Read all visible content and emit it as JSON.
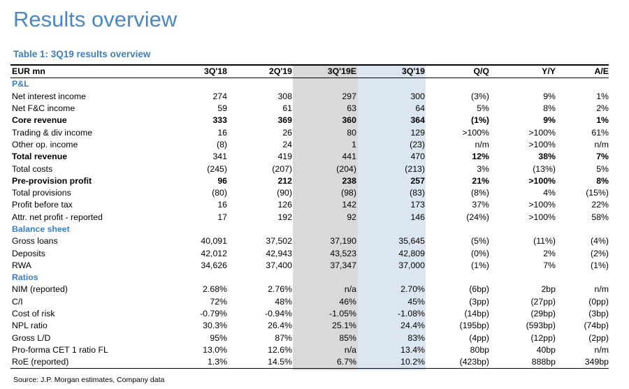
{
  "title": "Results overview",
  "subtitle": "Table 1: 3Q19 results overview",
  "source": "Source: J.P. Morgan estimates, Company data",
  "columns": [
    "EUR mn",
    "3Q'18",
    "2Q'19",
    "3Q'19E",
    "3Q'19",
    "Q/Q",
    "Y/Y",
    "A/E"
  ],
  "rows": [
    {
      "type": "section",
      "label": "P&L"
    },
    {
      "type": "data",
      "label": "Net interest income",
      "values": [
        "274",
        "308",
        "297",
        "300",
        "(3%)",
        "9%",
        "1%"
      ]
    },
    {
      "type": "data",
      "label": "Net F&C income",
      "values": [
        "59",
        "61",
        "63",
        "64",
        "5%",
        "8%",
        "2%"
      ]
    },
    {
      "type": "bold",
      "label": "Core revenue",
      "values": [
        "333",
        "369",
        "360",
        "364",
        "(1%)",
        "9%",
        "1%"
      ]
    },
    {
      "type": "data",
      "label": "Trading & div income",
      "values": [
        "16",
        "26",
        "80",
        "129",
        ">100%",
        ">100%",
        "61%"
      ]
    },
    {
      "type": "data",
      "label": "Other op. income",
      "values": [
        "(8)",
        "24",
        "1",
        "(23)",
        "n/m",
        ">100%",
        "n/m"
      ]
    },
    {
      "type": "bold",
      "label": "Total revenue",
      "values": [
        "341",
        "419",
        "441",
        "470",
        "12%",
        "38%",
        "7%"
      ],
      "boldValues": [
        false,
        false,
        false,
        false,
        true,
        true,
        true
      ]
    },
    {
      "type": "data",
      "label": "Total costs",
      "values": [
        "(245)",
        "(207)",
        "(204)",
        "(213)",
        "3%",
        "(13%)",
        "5%"
      ]
    },
    {
      "type": "bold",
      "label": "Pre-provision profit",
      "values": [
        "96",
        "212",
        "238",
        "257",
        "21%",
        ">100%",
        "8%"
      ]
    },
    {
      "type": "data",
      "label": "Total provisions",
      "values": [
        "(80)",
        "(90)",
        "(98)",
        "(83)",
        "(8%)",
        "4%",
        "(15%)"
      ]
    },
    {
      "type": "data",
      "label": "Profit before tax",
      "values": [
        "16",
        "126",
        "142",
        "173",
        "37%",
        ">100%",
        "22%"
      ]
    },
    {
      "type": "data",
      "label": "Attr. net profit - reported",
      "values": [
        "17",
        "192",
        "92",
        "146",
        "(24%)",
        ">100%",
        "58%"
      ]
    },
    {
      "type": "section",
      "label": "Balance sheet"
    },
    {
      "type": "data",
      "label": "Gross loans",
      "values": [
        "40,091",
        "37,502",
        "37,190",
        "35,645",
        "(5%)",
        "(11%)",
        "(4%)"
      ]
    },
    {
      "type": "data",
      "label": "Deposits",
      "values": [
        "42,012",
        "42,943",
        "43,523",
        "42,809",
        "(0%)",
        "2%",
        "(2%)"
      ]
    },
    {
      "type": "data",
      "label": "RWA",
      "values": [
        "34,626",
        "37,400",
        "37,347",
        "37,000",
        "(1%)",
        "7%",
        "(1%)"
      ]
    },
    {
      "type": "section",
      "label": "Ratios"
    },
    {
      "type": "data",
      "label": "NIM (reported)",
      "values": [
        "2.68%",
        "2.76%",
        "n/a",
        "2.70%",
        "(6bp)",
        "2bp",
        "n/m"
      ]
    },
    {
      "type": "data",
      "label": "C/I",
      "values": [
        "72%",
        "48%",
        "46%",
        "45%",
        "(3pp)",
        "(27pp)",
        "(0pp)"
      ]
    },
    {
      "type": "data",
      "label": "Cost of risk",
      "values": [
        "-0.79%",
        "-0.94%",
        "-1.05%",
        "-1.08%",
        "(14bp)",
        "(29bp)",
        "(3bp)"
      ]
    },
    {
      "type": "data",
      "label": "NPL ratio",
      "values": [
        "30.3%",
        "26.4%",
        "25.1%",
        "24.4%",
        "(195bp)",
        "(593bp)",
        "(74bp)"
      ]
    },
    {
      "type": "data",
      "label": "Gross L/D",
      "values": [
        "95%",
        "87%",
        "85%",
        "83%",
        "(4pp)",
        "(12pp)",
        "(2pp)"
      ]
    },
    {
      "type": "data",
      "label": "Pro-forma CET 1 ratio FL",
      "values": [
        "13.0%",
        "12.6%",
        "n/a",
        "13.4%",
        "80bp",
        "40bp",
        "n/m"
      ]
    },
    {
      "type": "data",
      "label": "RoE (reported)",
      "values": [
        "1.3%",
        "14.5%",
        "6.7%",
        "10.2%",
        "(423bp)",
        "888bp",
        "349bp"
      ]
    }
  ]
}
